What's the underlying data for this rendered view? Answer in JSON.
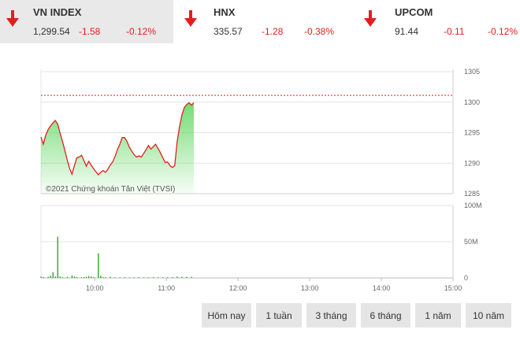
{
  "indices": [
    {
      "name": "VN INDEX",
      "value": "1,299.54",
      "change": "-1.58",
      "percent": "-0.12%",
      "direction": "down",
      "active": true
    },
    {
      "name": "HNX",
      "value": "335.57",
      "change": "-1.28",
      "percent": "-0.38%",
      "direction": "down",
      "active": false
    },
    {
      "name": "UPCOM",
      "value": "91.44",
      "change": "-0.11",
      "percent": "-0.12%",
      "direction": "down",
      "active": false
    }
  ],
  "icons": {
    "down": "arrow-down-icon"
  },
  "colors": {
    "down": "#e0201e",
    "up": "#1f9d1f",
    "line": "#e0201e",
    "reference": "#e0201e",
    "volume": "#1f9d1f"
  },
  "chart_data": {
    "type": "line",
    "price": {
      "reference": 1301.12,
      "ylim": [
        1285,
        1305
      ],
      "yticks": [
        "1305",
        "1300",
        "1295",
        "1290",
        "1285"
      ],
      "time_range": [
        "09:15",
        "15:00"
      ],
      "points": [
        [
          "09:15",
          1294.3
        ],
        [
          "09:17",
          1293.1
        ],
        [
          "09:19",
          1294.6
        ],
        [
          "09:21",
          1295.5
        ],
        [
          "09:23",
          1296.1
        ],
        [
          "09:25",
          1296.6
        ],
        [
          "09:27",
          1297.0
        ],
        [
          "09:29",
          1296.4
        ],
        [
          "09:31",
          1294.9
        ],
        [
          "09:33",
          1293.6
        ],
        [
          "09:35",
          1292.1
        ],
        [
          "09:37",
          1290.5
        ],
        [
          "09:39",
          1289.1
        ],
        [
          "09:41",
          1288.2
        ],
        [
          "09:43",
          1289.6
        ],
        [
          "09:45",
          1290.9
        ],
        [
          "09:47",
          1291.0
        ],
        [
          "09:49",
          1291.3
        ],
        [
          "09:51",
          1290.4
        ],
        [
          "09:53",
          1289.5
        ],
        [
          "09:55",
          1290.3
        ],
        [
          "09:57",
          1289.7
        ],
        [
          "09:59",
          1289.1
        ],
        [
          "10:01",
          1288.6
        ],
        [
          "10:03",
          1288.1
        ],
        [
          "10:05",
          1288.5
        ],
        [
          "10:07",
          1288.8
        ],
        [
          "10:09",
          1288.5
        ],
        [
          "10:11",
          1289.0
        ],
        [
          "10:13",
          1289.7
        ],
        [
          "10:15",
          1290.2
        ],
        [
          "10:17",
          1291.1
        ],
        [
          "10:19",
          1292.2
        ],
        [
          "10:21",
          1293.1
        ],
        [
          "10:23",
          1294.2
        ],
        [
          "10:25",
          1294.2
        ],
        [
          "10:27",
          1293.6
        ],
        [
          "10:29",
          1292.6
        ],
        [
          "10:31",
          1292.0
        ],
        [
          "10:33",
          1291.4
        ],
        [
          "10:35",
          1291.0
        ],
        [
          "10:37",
          1291.2
        ],
        [
          "10:39",
          1291.0
        ],
        [
          "10:41",
          1291.6
        ],
        [
          "10:43",
          1292.2
        ],
        [
          "10:45",
          1292.9
        ],
        [
          "10:47",
          1292.3
        ],
        [
          "10:49",
          1292.7
        ],
        [
          "10:51",
          1293.1
        ],
        [
          "10:53",
          1292.4
        ],
        [
          "10:55",
          1291.7
        ],
        [
          "10:57",
          1290.9
        ],
        [
          "10:59",
          1290.1
        ],
        [
          "11:01",
          1290.2
        ],
        [
          "11:03",
          1289.6
        ],
        [
          "11:05",
          1289.3
        ],
        [
          "11:07",
          1289.6
        ],
        [
          "11:09",
          1293.5
        ],
        [
          "11:11",
          1295.9
        ],
        [
          "11:13",
          1297.9
        ],
        [
          "11:15",
          1299.1
        ],
        [
          "11:17",
          1299.6
        ],
        [
          "11:19",
          1299.9
        ],
        [
          "11:21",
          1299.5
        ],
        [
          "11:23",
          1299.9
        ]
      ]
    },
    "volume": {
      "ylim": [
        0,
        100
      ],
      "yticks": [
        "100M",
        "50M",
        "0"
      ],
      "unit": "M",
      "bars": [
        [
          "09:15",
          2
        ],
        [
          "09:17",
          1.2
        ],
        [
          "09:21",
          1.5
        ],
        [
          "09:23",
          3
        ],
        [
          "09:25",
          8
        ],
        [
          "09:27",
          2
        ],
        [
          "09:29",
          57
        ],
        [
          "09:31",
          2
        ],
        [
          "09:33",
          1
        ],
        [
          "09:37",
          1.3
        ],
        [
          "09:41",
          3.5
        ],
        [
          "09:43",
          2
        ],
        [
          "09:45",
          1.2
        ],
        [
          "09:49",
          0.8
        ],
        [
          "09:51",
          1
        ],
        [
          "09:53",
          1.5
        ],
        [
          "09:55",
          2.5
        ],
        [
          "09:57",
          1.8
        ],
        [
          "09:59",
          1
        ],
        [
          "10:03",
          34
        ],
        [
          "10:05",
          3
        ],
        [
          "10:07",
          1.2
        ],
        [
          "10:09",
          0.9
        ],
        [
          "10:13",
          1.5
        ],
        [
          "10:17",
          0.8
        ],
        [
          "10:21",
          0.8
        ],
        [
          "10:25",
          1
        ],
        [
          "10:29",
          0.8
        ],
        [
          "10:33",
          0.8
        ],
        [
          "10:37",
          1
        ],
        [
          "10:41",
          0.8
        ],
        [
          "10:45",
          0.8
        ],
        [
          "10:49",
          1
        ],
        [
          "10:53",
          0.8
        ],
        [
          "10:57",
          0.8
        ],
        [
          "11:01",
          1
        ],
        [
          "11:05",
          1.2
        ],
        [
          "11:09",
          1.8
        ],
        [
          "11:13",
          1.5
        ],
        [
          "11:17",
          1.5
        ],
        [
          "11:21",
          1.5
        ]
      ]
    },
    "xticks": [
      "10:00",
      "11:00",
      "12:00",
      "13:00",
      "14:00",
      "15:00"
    ],
    "grid": true
  },
  "copyright": "©2021 Chứng khoán Tân Việt (TVSI)",
  "range_buttons": [
    "Hôm nay",
    "1 tuần",
    "3 tháng",
    "6 tháng",
    "1 năm",
    "10 năm"
  ]
}
